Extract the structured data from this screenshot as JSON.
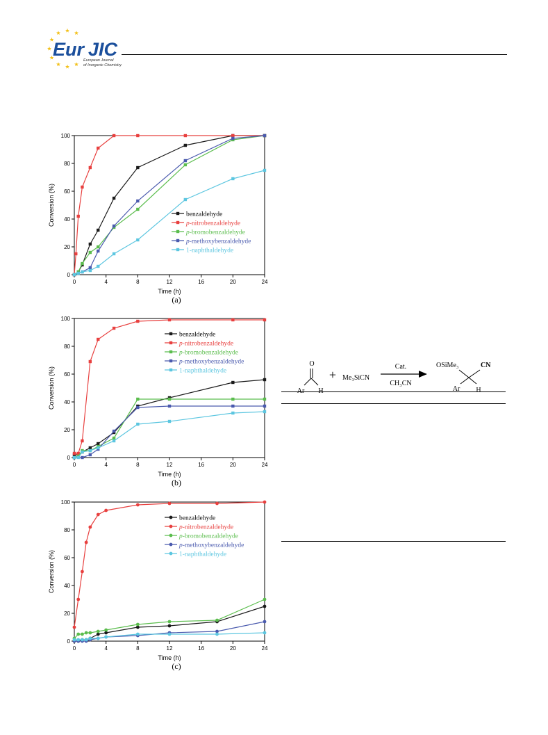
{
  "journal": {
    "logo_main": "Eur",
    "logo_accent": "JIC",
    "logo_sub1": "European Journal",
    "logo_sub2": "of Inorganic Chemistry",
    "brand_color": "#1b4f9c",
    "star_color": "#f2c018"
  },
  "scheme": {
    "reactant_O": "O",
    "reactant_Ar": "Ar",
    "reactant_H": "H",
    "plus": "+",
    "reagent": "Me₃SiCN",
    "catalyst": "Cat.",
    "solvent": "CH₃CN",
    "product_group": "OSiMe₃",
    "product_CN": "CN",
    "product_Ar": "Ar",
    "product_H": "H"
  },
  "chart_data": [
    {
      "type": "line",
      "panel_label": "(a)",
      "xlabel": "Time (h)",
      "ylabel": "Conversion (%)",
      "xlim": [
        0,
        24
      ],
      "ylim": [
        0,
        100
      ],
      "xticks": [
        0,
        4,
        8,
        12,
        16,
        20,
        24
      ],
      "yticks": [
        0,
        20,
        40,
        60,
        80,
        100
      ],
      "marker": "square",
      "legend_position": "right-middle",
      "series": [
        {
          "name": "benzaldehyde",
          "italic_prefix": "",
          "color": "#1a1a1a",
          "x": [
            0,
            0.5,
            1,
            2,
            3,
            5,
            8,
            14,
            20,
            24
          ],
          "y": [
            0,
            2,
            7,
            22,
            32,
            55,
            77,
            93,
            100,
            100
          ]
        },
        {
          "name": "nitrobenzaldehyde",
          "italic_prefix": "p-",
          "color": "#e8403f",
          "x": [
            0,
            0.2,
            0.5,
            1,
            2,
            3,
            5,
            8,
            14,
            20,
            24
          ],
          "y": [
            0,
            15,
            42,
            63,
            77,
            91,
            100,
            100,
            100,
            100,
            100
          ]
        },
        {
          "name": "bromobenzaldehyde",
          "italic_prefix": "p-",
          "color": "#5bbd4d",
          "x": [
            0,
            0.5,
            1,
            2,
            3,
            5,
            8,
            14,
            20,
            24
          ],
          "y": [
            0,
            2,
            8,
            16,
            20,
            34,
            47,
            79,
            97,
            100
          ]
        },
        {
          "name": "methoxybenzaldehyde",
          "italic_prefix": "p-",
          "color": "#4a5aae",
          "x": [
            0,
            0.5,
            1,
            2,
            3,
            5,
            8,
            14,
            20,
            24
          ],
          "y": [
            0,
            1,
            2,
            5,
            17,
            35,
            53,
            82,
            98,
            100
          ]
        },
        {
          "name": "1-naphthaldehyde",
          "italic_prefix": "",
          "color": "#5cc6e0",
          "x": [
            0,
            0.5,
            1,
            2,
            3,
            5,
            8,
            14,
            20,
            24
          ],
          "y": [
            0,
            1,
            2,
            3,
            6,
            15,
            25,
            54,
            69,
            75
          ]
        }
      ]
    },
    {
      "type": "line",
      "panel_label": "(b)",
      "xlabel": "Time (h)",
      "ylabel": "Conversion (%)",
      "xlim": [
        0,
        24
      ],
      "ylim": [
        0,
        100
      ],
      "xticks": [
        0,
        4,
        8,
        12,
        16,
        20,
        24
      ],
      "yticks": [
        0,
        20,
        40,
        60,
        80,
        100
      ],
      "marker": "square",
      "legend_position": "top-center",
      "series": [
        {
          "name": "benzaldehyde",
          "italic_prefix": "",
          "color": "#1a1a1a",
          "x": [
            0,
            0.5,
            1,
            2,
            3,
            5,
            8,
            12,
            20,
            24
          ],
          "y": [
            2,
            2,
            4,
            7,
            10,
            18,
            37,
            43,
            54,
            56
          ]
        },
        {
          "name": "nitrobenzaldehyde",
          "italic_prefix": "p-",
          "color": "#e8403f",
          "x": [
            0,
            0.5,
            1,
            2,
            3,
            5,
            8,
            12,
            20,
            24
          ],
          "y": [
            3,
            3,
            12,
            69,
            85,
            93,
            98,
            99,
            99,
            99
          ]
        },
        {
          "name": "bromobenzaldehyde",
          "italic_prefix": "p-",
          "color": "#5bbd4d",
          "x": [
            0,
            0.5,
            1,
            2,
            3,
            5,
            8,
            12,
            20,
            24
          ],
          "y": [
            0,
            1,
            5,
            5,
            8,
            14,
            42,
            42,
            42,
            42
          ]
        },
        {
          "name": "methoxybenzaldehyde",
          "italic_prefix": "p-",
          "color": "#4a5aae",
          "x": [
            0,
            1,
            2,
            3,
            5,
            8,
            12,
            20,
            24
          ],
          "y": [
            0,
            0,
            2,
            6,
            19,
            36,
            37,
            37,
            37
          ]
        },
        {
          "name": "1-naphthaldehyde",
          "italic_prefix": "",
          "color": "#5cc6e0",
          "x": [
            0,
            0.5,
            1,
            2,
            3,
            5,
            8,
            12,
            20,
            24
          ],
          "y": [
            0,
            0,
            4,
            5,
            7,
            12,
            24,
            26,
            32,
            33
          ]
        }
      ]
    },
    {
      "type": "line",
      "panel_label": "(c)",
      "xlabel": "Time (h)",
      "ylabel": "Conversion (%)",
      "xlim": [
        0,
        24
      ],
      "ylim": [
        0,
        100
      ],
      "xticks": [
        0,
        4,
        8,
        12,
        16,
        20,
        24
      ],
      "yticks": [
        0,
        20,
        40,
        60,
        80,
        100
      ],
      "marker": "circle",
      "legend_position": "top-center",
      "series": [
        {
          "name": "benzaldehyde",
          "italic_prefix": "",
          "color": "#1a1a1a",
          "x": [
            0,
            0.5,
            1,
            1.5,
            2,
            3,
            4,
            8,
            12,
            18,
            24
          ],
          "y": [
            0,
            0,
            1,
            1,
            2,
            5,
            6,
            10,
            11,
            14,
            25
          ]
        },
        {
          "name": "nitrobenzaldehyde",
          "italic_prefix": "p-",
          "color": "#e8403f",
          "x": [
            0,
            0.5,
            1,
            1.5,
            2,
            3,
            4,
            8,
            12,
            18,
            24
          ],
          "y": [
            10,
            30,
            50,
            71,
            82,
            91,
            94,
            98,
            99,
            99,
            100
          ]
        },
        {
          "name": "bromobenzaldehyde",
          "italic_prefix": "p-",
          "color": "#5bbd4d",
          "x": [
            0,
            0.5,
            1,
            1.5,
            2,
            3,
            4,
            8,
            12,
            18,
            24
          ],
          "y": [
            2,
            5,
            5,
            6,
            6,
            7,
            8,
            12,
            14,
            15,
            30
          ]
        },
        {
          "name": "methoxybenzaldehyde",
          "italic_prefix": "p-",
          "color": "#4a5aae",
          "x": [
            0,
            0.5,
            1,
            1.5,
            2,
            3,
            4,
            8,
            12,
            18,
            24
          ],
          "y": [
            0,
            0,
            0,
            0,
            1,
            2,
            3,
            4,
            6,
            7,
            14
          ]
        },
        {
          "name": "1-naphthaldehyde",
          "italic_prefix": "",
          "color": "#5cc6e0",
          "x": [
            0,
            0.5,
            1,
            1.5,
            2,
            3,
            4,
            8,
            12,
            18,
            24
          ],
          "y": [
            1,
            1,
            1,
            1,
            2,
            2,
            3,
            5,
            5,
            5,
            6
          ]
        }
      ]
    }
  ]
}
